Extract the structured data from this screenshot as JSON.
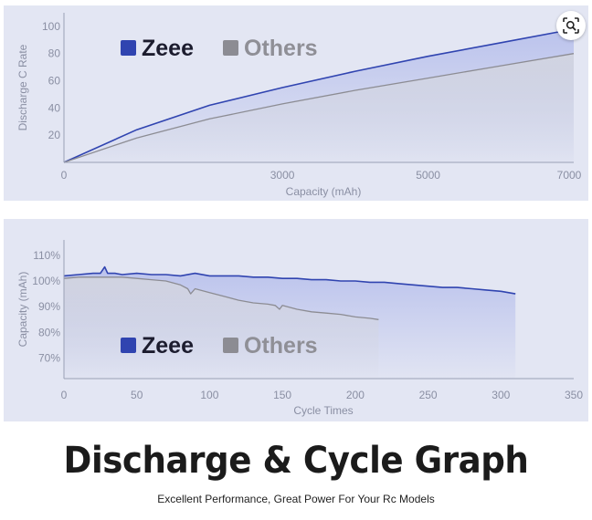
{
  "colors": {
    "panel_bg": "#e3e6f3",
    "zeee": "#3044b0",
    "zeee_fill": "#b9c1ec",
    "others": "#8c8c93",
    "others_fill": "#d3d5df",
    "axis_text": "#8a8fa3",
    "title": "#1b1b1b"
  },
  "title": "Discharge & Cycle Graph",
  "subtitle": "Excellent Performance, Great Power For Your Rc Models",
  "toolbar": {
    "lens_icon": "visual-search-icon"
  },
  "chart_data": [
    {
      "type": "line",
      "title": "",
      "xlabel": "Capacity (mAh)",
      "ylabel": "Discharge C Rate",
      "xlim": [
        0,
        7000
      ],
      "ylim": [
        0,
        110
      ],
      "xticks": [
        0,
        3000,
        5000,
        7000
      ],
      "xtick_labels": [
        "0",
        "3000",
        "5000",
        "7000"
      ],
      "yticks": [
        20,
        40,
        60,
        80,
        100
      ],
      "ytick_labels": [
        "20",
        "40",
        "60",
        "80",
        "100"
      ],
      "grid": false,
      "legend": {
        "placement": "top-left"
      },
      "series": [
        {
          "name": "Zeee",
          "color": "#3044b0",
          "x": [
            0,
            1000,
            2000,
            3000,
            4000,
            5000,
            6000,
            7000
          ],
          "y": [
            0,
            24,
            42,
            55,
            67,
            78,
            88,
            98
          ]
        },
        {
          "name": "Others",
          "color": "#8c8c93",
          "x": [
            0,
            1000,
            2000,
            3000,
            4000,
            5000,
            6000,
            7000
          ],
          "y": [
            0,
            18,
            32,
            43,
            53,
            62,
            71,
            80
          ]
        }
      ]
    },
    {
      "type": "line",
      "title": "",
      "xlabel": "Cycle Times",
      "ylabel": "Capacity (mAh)",
      "xlim": [
        0,
        350
      ],
      "ylim": [
        62,
        116
      ],
      "xticks": [
        0,
        50,
        100,
        150,
        200,
        250,
        300,
        350
      ],
      "xtick_labels": [
        "0",
        "50",
        "100",
        "150",
        "200",
        "250",
        "300",
        "350"
      ],
      "yticks": [
        70,
        80,
        90,
        100,
        110
      ],
      "ytick_labels": [
        "70%",
        "80%",
        "90%",
        "100%",
        "110%"
      ],
      "grid": false,
      "legend": {
        "placement": "bottom-left"
      },
      "series": [
        {
          "name": "Zeee",
          "color": "#3044b0",
          "x": [
            0,
            10,
            20,
            25,
            28,
            30,
            35,
            40,
            50,
            60,
            70,
            80,
            90,
            100,
            110,
            120,
            130,
            140,
            150,
            160,
            170,
            180,
            190,
            200,
            210,
            220,
            230,
            240,
            250,
            260,
            270,
            280,
            290,
            300,
            310
          ],
          "y": [
            102,
            102.5,
            103,
            103,
            105.5,
            103,
            103,
            102.5,
            103,
            102.5,
            102.5,
            102,
            103,
            102,
            102,
            102,
            101.5,
            101.5,
            101,
            101,
            100.5,
            100.5,
            100,
            100,
            99.5,
            99.5,
            99,
            98.5,
            98,
            97.5,
            97.5,
            97,
            96.5,
            96,
            95
          ]
        },
        {
          "name": "Others",
          "color": "#8c8c93",
          "x": [
            0,
            10,
            20,
            30,
            40,
            50,
            60,
            70,
            80,
            85,
            87,
            90,
            100,
            110,
            120,
            130,
            140,
            145,
            148,
            150,
            160,
            170,
            180,
            190,
            200,
            210,
            216
          ],
          "y": [
            101,
            101.5,
            101.5,
            101.5,
            101.5,
            101,
            100.5,
            100,
            98.5,
            97,
            95,
            97,
            95.5,
            94,
            92.5,
            91.5,
            91,
            90.5,
            89,
            90.5,
            89,
            88,
            87.5,
            87,
            86,
            85.5,
            85
          ]
        }
      ]
    }
  ]
}
